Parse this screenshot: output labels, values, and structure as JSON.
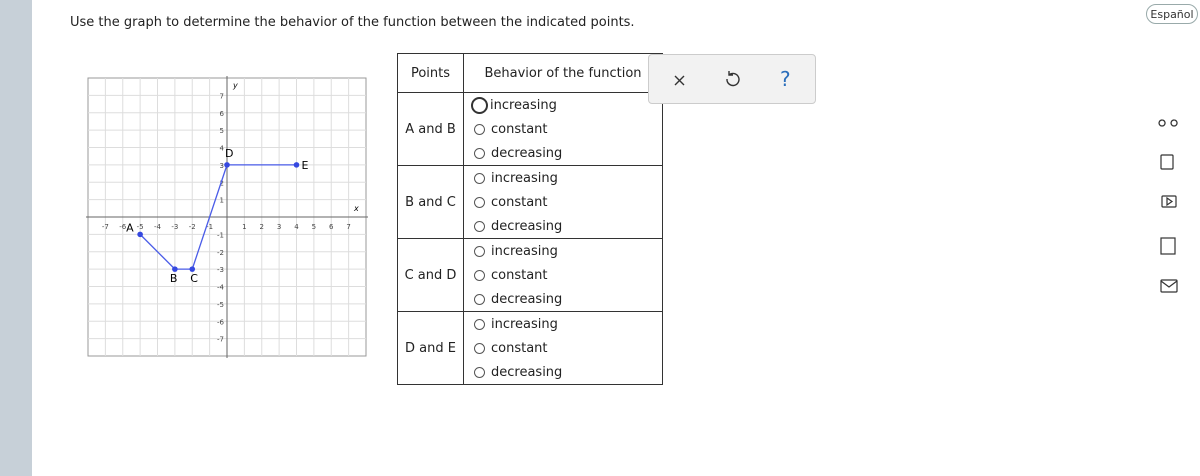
{
  "language_button": "Español",
  "instruction": "Use the graph to determine the behavior of the function between the indicated points.",
  "graph": {
    "x_label": "x",
    "y_label": "y",
    "xlim": [
      -8,
      8
    ],
    "ylim": [
      -8,
      8
    ],
    "xticks": [
      -7,
      -6,
      -5,
      -4,
      -3,
      -2,
      -1,
      1,
      2,
      3,
      4,
      5,
      6,
      7
    ],
    "yticks": [
      -7,
      -6,
      -5,
      -4,
      -3,
      -2,
      -1,
      1,
      2,
      3,
      4,
      5,
      6,
      7
    ],
    "points": [
      {
        "label": "A",
        "x": -5,
        "y": -1
      },
      {
        "label": "B",
        "x": -3,
        "y": -3
      },
      {
        "label": "C",
        "x": -2,
        "y": -3
      },
      {
        "label": "D",
        "x": 0,
        "y": 3
      },
      {
        "label": "E",
        "x": 4,
        "y": 3
      }
    ]
  },
  "table": {
    "headers": [
      "Points",
      "Behavior of the function"
    ],
    "rows": [
      {
        "points": "A and B",
        "options": [
          "increasing",
          "constant",
          "decreasing"
        ]
      },
      {
        "points": "B and C",
        "options": [
          "increasing",
          "constant",
          "decreasing"
        ]
      },
      {
        "points": "C and D",
        "options": [
          "increasing",
          "constant",
          "decreasing"
        ]
      },
      {
        "points": "D and E",
        "options": [
          "increasing",
          "constant",
          "decreasing"
        ]
      }
    ]
  },
  "toolbar": {
    "help": "?"
  }
}
